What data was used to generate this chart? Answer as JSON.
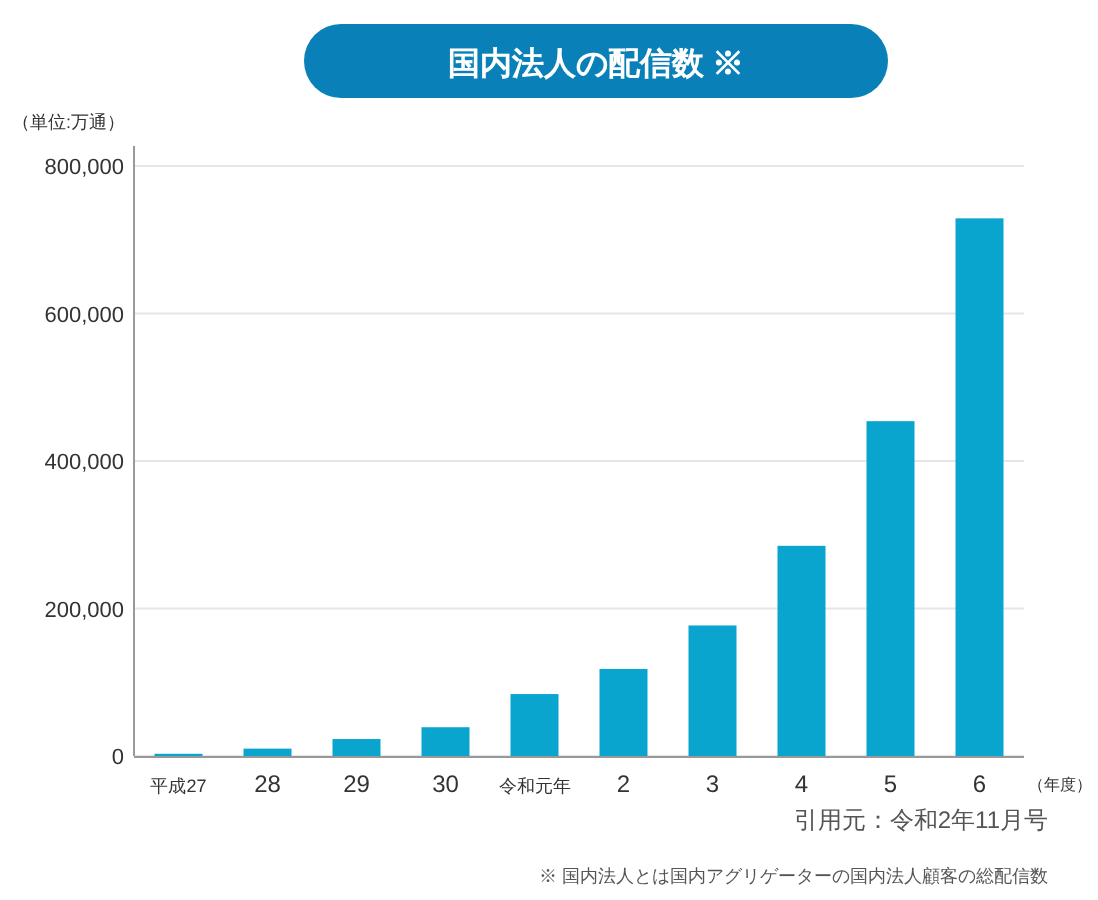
{
  "chart_data": {
    "type": "bar",
    "title": "国内法人の配信数 ※",
    "ylabel": "（単位:万通）",
    "xlabel": "（年度）",
    "categories": [
      "平成27",
      "28",
      "29",
      "30",
      "令和元年",
      "2",
      "3",
      "4",
      "5",
      "6"
    ],
    "values": [
      3000,
      10000,
      23000,
      39000,
      84000,
      118000,
      177000,
      285000,
      454000,
      729000
    ],
    "color": "#0aa5cf",
    "ylim": [
      0,
      800000
    ],
    "yticks": [
      {
        "value": 0,
        "label": "0"
      },
      {
        "value": 200000,
        "label": "200,000"
      },
      {
        "value": 400000,
        "label": "400,000"
      },
      {
        "value": 600000,
        "label": "600,000"
      },
      {
        "value": 800000,
        "label": "800,000"
      }
    ],
    "grid": "y",
    "annotations": [
      "引用元：令和2年11月号",
      "※ 国内法人とは国内アグリゲーターの国内法人顧客の総配信数"
    ]
  }
}
